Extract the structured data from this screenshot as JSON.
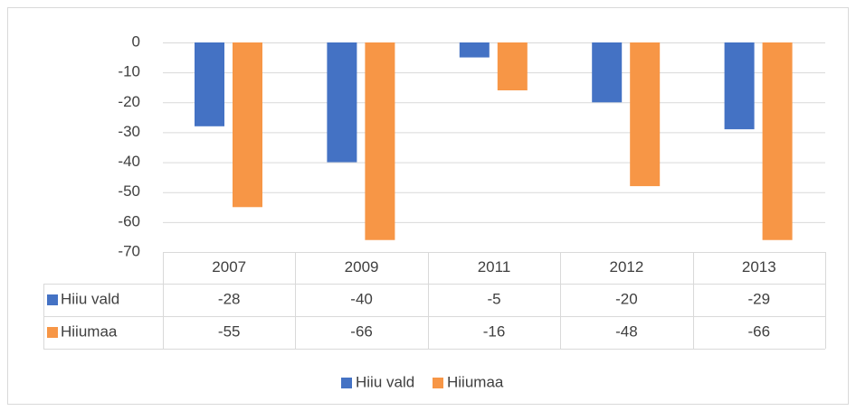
{
  "chart_data": {
    "type": "bar",
    "categories": [
      "2007",
      "2009",
      "2011",
      "2012",
      "2013"
    ],
    "series": [
      {
        "name": "Hiiu vald",
        "color": "#4472c4",
        "values": [
          -28,
          -40,
          -5,
          -20,
          -29
        ]
      },
      {
        "name": "Hiiumaa",
        "color": "#f79646",
        "values": [
          -55,
          -66,
          -16,
          -48,
          -66
        ]
      }
    ],
    "ylim": [
      -70,
      0
    ],
    "yticks": [
      0,
      -10,
      -20,
      -30,
      -40,
      -50,
      -60,
      -70
    ],
    "grid": true,
    "legend": "bottom",
    "data_table": true
  }
}
